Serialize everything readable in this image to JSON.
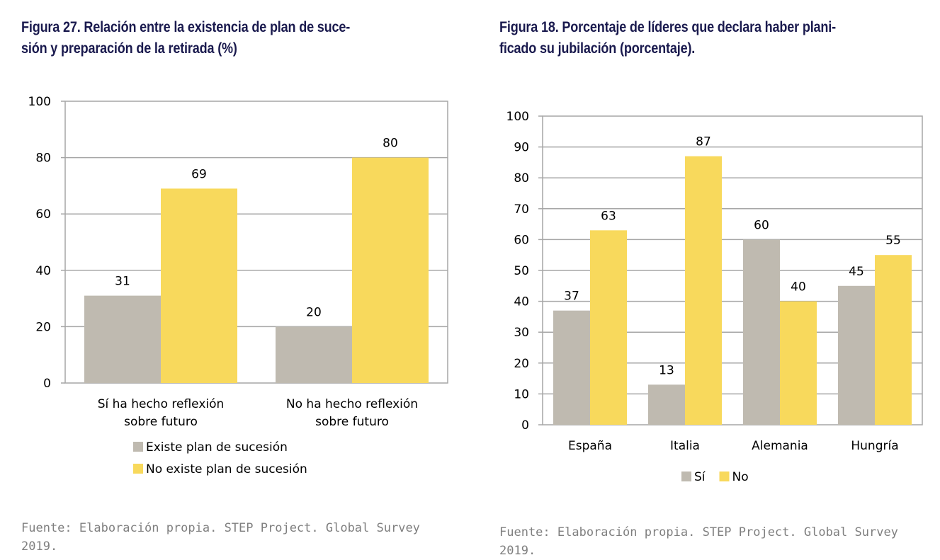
{
  "figures": [
    {
      "title_line1": "Figura 27. Relación entre la existencia de plan de suce-",
      "title_line2": "sión y preparación de la retirada  (%)",
      "source_line1": "Fuente: Elaboración propia. STEP Project. Global Survey",
      "source_line2": "2019."
    },
    {
      "title_line1": "Figura 18. Porcentaje de líderes que declara haber plani-",
      "title_line2": "ficado su jubilación (porcentaje).",
      "source_line1": "Fuente: Elaboración propia. STEP Project. Global Survey",
      "source_line2": "2019."
    }
  ],
  "chart_data": [
    {
      "type": "bar",
      "title": "Figura 27. Relación entre la existencia de plan de sucesión y preparación de la retirada  (%)",
      "categories": [
        [
          "Sí ha hecho reflexión",
          "sobre futuro"
        ],
        [
          "No ha hecho reflexión",
          "sobre futuro"
        ]
      ],
      "series": [
        {
          "name": "Existe plan de sucesión",
          "values": [
            31,
            20
          ],
          "color": "#bfbab0"
        },
        {
          "name": "No existe plan de sucesión",
          "values": [
            69,
            80
          ],
          "color": "#f8d95c"
        }
      ],
      "ylim": [
        0,
        100
      ],
      "yticks": [
        0,
        20,
        40,
        60,
        80,
        100
      ],
      "grid": true,
      "legend": "bottom, stacked vertically"
    },
    {
      "type": "bar",
      "title": "Figura 18. Porcentaje de líderes que declara haber planificado su jubilación (porcentaje).",
      "categories": [
        [
          "España"
        ],
        [
          "Italia"
        ],
        [
          "Alemania"
        ],
        [
          "Hungría"
        ]
      ],
      "series": [
        {
          "name": "Sí",
          "values": [
            37,
            13,
            60,
            45
          ],
          "color": "#bfbab0"
        },
        {
          "name": "No",
          "values": [
            63,
            87,
            40,
            55
          ],
          "color": "#f8d95c"
        }
      ],
      "ylim": [
        0,
        100
      ],
      "yticks": [
        0,
        10,
        20,
        30,
        40,
        50,
        60,
        70,
        80,
        90,
        100
      ],
      "grid": true,
      "legend": "bottom, inline"
    }
  ]
}
